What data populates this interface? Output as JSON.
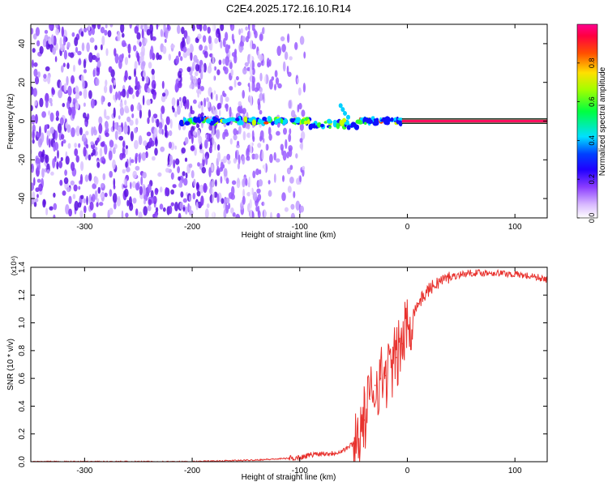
{
  "figure": {
    "title": "C2E4.2025.172.16.10.R14"
  },
  "chart_data": [
    {
      "type": "heatmap",
      "title": "C2E4.2025.172.16.10.R14",
      "xlabel": "Height of straight line (km)",
      "ylabel": "Frequency (Hz)",
      "xlim": [
        -350,
        130
      ],
      "ylim": [
        -50,
        50
      ],
      "x_ticks": [
        -300,
        -200,
        -100,
        0,
        100
      ],
      "y_ticks": [
        -40,
        -20,
        0,
        20,
        40
      ],
      "colorbar": {
        "label": "Normalized spectral amplitude",
        "range": [
          0,
          1
        ],
        "ticks": [
          0.0,
          0.2,
          0.4,
          0.6,
          0.8
        ],
        "colors": [
          "#ffffff",
          "#c8a0ff",
          "#5a00ff",
          "#0000ff",
          "#00e0ff",
          "#00ff40",
          "#c0ff00",
          "#ff6000",
          "#ff0080"
        ]
      },
      "features": {
        "noise_region_x": [
          -350,
          -120
        ],
        "signal_track_x": [
          -210,
          -5
        ],
        "steady_line_x": [
          -5,
          130
        ],
        "steady_line_freq": 0
      },
      "grid": false
    },
    {
      "type": "line",
      "xlabel": "Height of straight line (km)",
      "ylabel": "SNR (10 * v/v)",
      "y_multiplier_label": "(x10⁴)",
      "xlim": [
        -350,
        130
      ],
      "ylim": [
        0,
        1.4
      ],
      "x_ticks": [
        -300,
        -200,
        -100,
        0,
        100
      ],
      "y_ticks": [
        0.0,
        0.2,
        0.4,
        0.6,
        0.8,
        1.0,
        1.2,
        1.4
      ],
      "series": [
        {
          "color": "#e8312d",
          "x": [
            -350,
            -300,
            -250,
            -200,
            -150,
            -120,
            -100,
            -90,
            -80,
            -70,
            -60,
            -50,
            -40,
            -35,
            -30,
            -25,
            -20,
            -15,
            -10,
            -5,
            0,
            10,
            20,
            30,
            40,
            50,
            60,
            80,
            100,
            120,
            130
          ],
          "y": [
            0.0,
            0.0,
            0.0,
            0.0,
            0.01,
            0.02,
            0.03,
            0.05,
            0.06,
            0.06,
            0.08,
            0.13,
            0.3,
            0.45,
            0.55,
            0.6,
            0.62,
            0.68,
            0.75,
            0.85,
            0.98,
            1.14,
            1.24,
            1.3,
            1.33,
            1.35,
            1.36,
            1.36,
            1.35,
            1.33,
            1.31
          ]
        }
      ],
      "grid": false
    }
  ]
}
